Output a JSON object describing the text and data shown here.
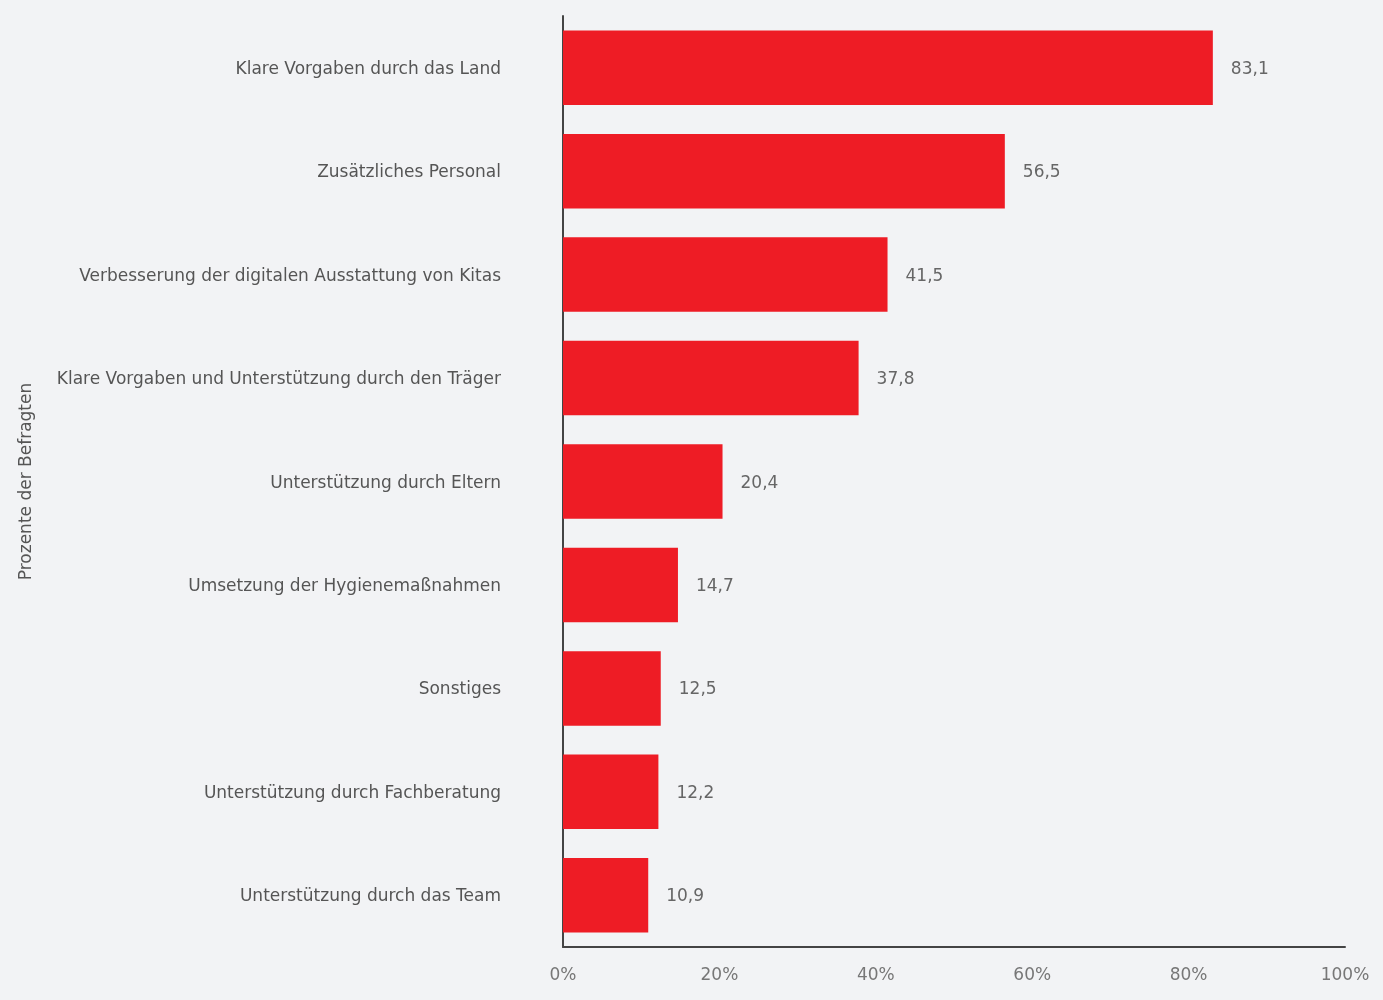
{
  "chart_data": {
    "type": "bar",
    "orientation": "horizontal",
    "ylabel": "Prozente der Befragten",
    "categories": [
      "Klare Vorgaben durch das Land",
      "Zusätzliches Personal",
      "Verbesserung der digitalen Ausstattung von Kitas",
      "Klare Vorgaben und Unterstützung durch den Träger",
      "Unterstützung durch Eltern",
      "Umsetzung der Hygienemaßnahmen",
      "Sonstiges",
      "Unterstützung durch Fachberatung",
      "Unterstützung durch das Team"
    ],
    "values": [
      83.1,
      56.5,
      41.5,
      37.8,
      20.4,
      14.7,
      12.5,
      12.2,
      10.9
    ],
    "value_labels": [
      "83,1",
      "56,5",
      "41,5",
      "37,8",
      "20,4",
      "14,7",
      "12,5",
      "12,2",
      "10,9"
    ],
    "color": "#ee1c25",
    "xlim": [
      0,
      100
    ],
    "xticks": [
      {
        "value": 0,
        "label": "0%"
      },
      {
        "value": 20,
        "label": "20%"
      },
      {
        "value": 40,
        "label": "40%"
      },
      {
        "value": 60,
        "label": "60%"
      },
      {
        "value": 80,
        "label": "80%"
      },
      {
        "value": 100,
        "label": "100%"
      }
    ],
    "grid": false
  }
}
